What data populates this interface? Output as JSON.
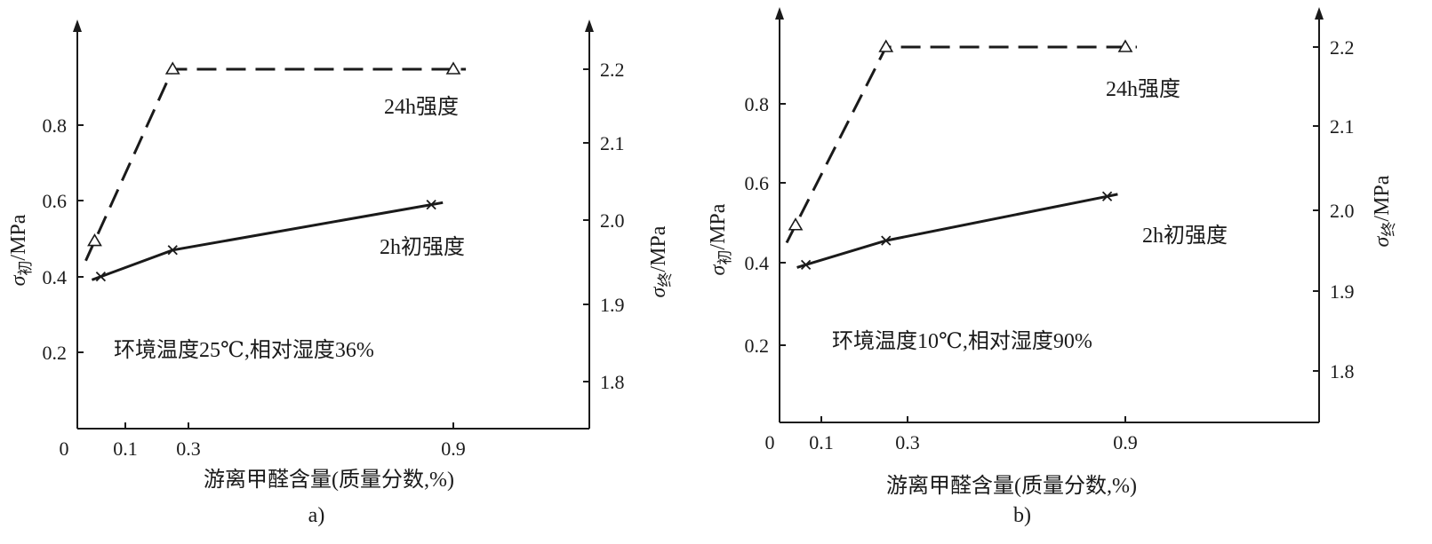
{
  "chart_data": [
    {
      "type": "line",
      "panel_label": "a)",
      "xlabel": "游离甲醛含量(质量分数,%)",
      "x_ticks": [
        "0",
        "0.1",
        "0.3",
        "0.9"
      ],
      "ylabel_left": {
        "symbol": "σ",
        "subscript": "初",
        "unit": "/MPa"
      },
      "ylabel_right": {
        "symbol": "σ",
        "subscript": "终",
        "unit": "/MPa"
      },
      "left_y_ticks": [
        "0.2",
        "0.4",
        "0.6",
        "0.8"
      ],
      "right_y_ticks": [
        "1.8",
        "1.9",
        "2.0",
        "2.1",
        "2.2"
      ],
      "annotation": "环境温度25℃,相对湿度36%",
      "series": [
        {
          "name": "24h强度",
          "axis": "right",
          "style": "dashed",
          "marker": "triangle",
          "x": [
            0.05,
            0.25,
            0.9
          ],
          "y": [
            1.98,
            2.2,
            2.2
          ]
        },
        {
          "name": "2h初强度",
          "axis": "left",
          "style": "solid",
          "marker": "x",
          "x": [
            0.06,
            0.25,
            0.85
          ],
          "y": [
            0.4,
            0.47,
            0.59
          ]
        }
      ]
    },
    {
      "type": "line",
      "panel_label": "b)",
      "xlabel": "游离甲醛含量(质量分数,%)",
      "x_ticks": [
        "0",
        "0.1",
        "0.3",
        "0.9"
      ],
      "ylabel_left": {
        "symbol": "σ",
        "subscript": "初",
        "unit": "/MPa"
      },
      "ylabel_right": {
        "symbol": "σ",
        "subscript": "终",
        "unit": "/MPa"
      },
      "left_y_ticks": [
        "0.2",
        "0.4",
        "0.6",
        "0.8"
      ],
      "right_y_ticks": [
        "1.8",
        "1.9",
        "2.0",
        "2.1",
        "2.2"
      ],
      "annotation": "环境温度10℃,相对湿度90%",
      "series": [
        {
          "name": "24h强度",
          "axis": "right",
          "style": "dashed",
          "marker": "triangle",
          "x": [
            0.05,
            0.25,
            0.9
          ],
          "y": [
            1.98,
            2.2,
            2.2
          ]
        },
        {
          "name": "2h初强度",
          "axis": "left",
          "style": "solid",
          "marker": "x",
          "x": [
            0.07,
            0.25,
            0.85
          ],
          "y": [
            0.4,
            0.46,
            0.57
          ]
        }
      ]
    }
  ]
}
